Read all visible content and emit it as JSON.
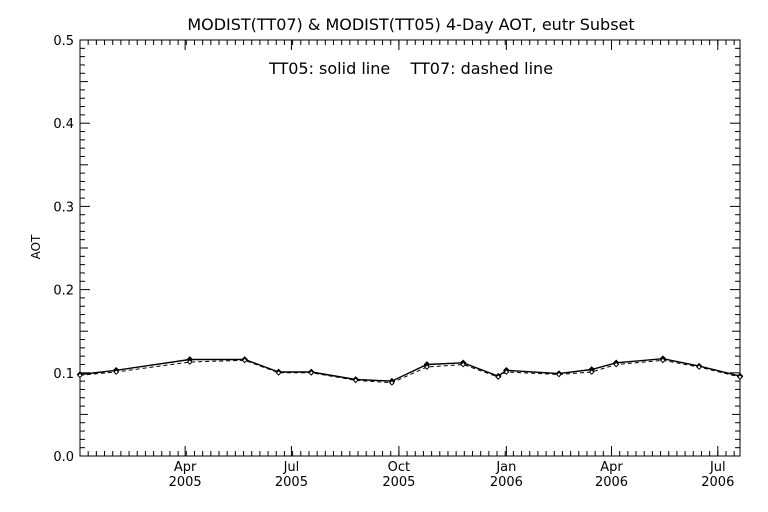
{
  "chart_data": {
    "type": "line",
    "title": "MODIST(TT07) & MODIST(TT05) 4-Day AOT, eutr Subset",
    "annotation": "TT05: solid line    TT07: dashed line",
    "ylabel": "AOT",
    "xlabel": "",
    "ylim": [
      0.0,
      0.5
    ],
    "xlim": [
      "2005-01-01",
      "2006-07-20"
    ],
    "y_ticks": [
      "0.0",
      "0.1",
      "0.2",
      "0.3",
      "0.4",
      "0.5"
    ],
    "x_ticks": [
      {
        "date": "2005-04-01",
        "month": "Apr",
        "year": "2005"
      },
      {
        "date": "2005-07-01",
        "month": "Jul",
        "year": "2005"
      },
      {
        "date": "2005-10-01",
        "month": "Oct",
        "year": "2005"
      },
      {
        "date": "2006-01-01",
        "month": "Jan",
        "year": "2006"
      },
      {
        "date": "2006-04-01",
        "month": "Apr",
        "year": "2006"
      },
      {
        "date": "2006-07-01",
        "month": "Jul",
        "year": "2006"
      }
    ],
    "grid": false,
    "series": [
      {
        "name": "TT05",
        "style": "solid",
        "points": [
          {
            "x": "2005-01-01",
            "y": 0.098
          },
          {
            "x": "2005-02-01",
            "y": 0.103
          },
          {
            "x": "2005-04-05",
            "y": 0.116
          },
          {
            "x": "2005-05-22",
            "y": 0.116
          },
          {
            "x": "2005-06-20",
            "y": 0.101
          },
          {
            "x": "2005-07-18",
            "y": 0.101
          },
          {
            "x": "2005-08-25",
            "y": 0.092
          },
          {
            "x": "2005-09-25",
            "y": 0.09
          },
          {
            "x": "2005-10-25",
            "y": 0.11
          },
          {
            "x": "2005-11-25",
            "y": 0.112
          },
          {
            "x": "2005-12-25",
            "y": 0.096
          },
          {
            "x": "2006-01-01",
            "y": 0.103
          },
          {
            "x": "2006-02-15",
            "y": 0.099
          },
          {
            "x": "2006-03-15",
            "y": 0.104
          },
          {
            "x": "2006-04-05",
            "y": 0.112
          },
          {
            "x": "2006-05-15",
            "y": 0.117
          },
          {
            "x": "2006-06-15",
            "y": 0.108
          },
          {
            "x": "2006-07-20",
            "y": 0.096
          }
        ]
      },
      {
        "name": "TT07",
        "style": "dashed",
        "points": [
          {
            "x": "2005-01-01",
            "y": 0.097
          },
          {
            "x": "2005-02-01",
            "y": 0.101
          },
          {
            "x": "2005-04-05",
            "y": 0.113
          },
          {
            "x": "2005-05-22",
            "y": 0.115
          },
          {
            "x": "2005-06-20",
            "y": 0.1
          },
          {
            "x": "2005-07-18",
            "y": 0.1
          },
          {
            "x": "2005-08-25",
            "y": 0.091
          },
          {
            "x": "2005-09-25",
            "y": 0.088
          },
          {
            "x": "2005-10-25",
            "y": 0.107
          },
          {
            "x": "2005-11-25",
            "y": 0.11
          },
          {
            "x": "2005-12-25",
            "y": 0.095
          },
          {
            "x": "2006-01-01",
            "y": 0.101
          },
          {
            "x": "2006-02-15",
            "y": 0.098
          },
          {
            "x": "2006-03-15",
            "y": 0.101
          },
          {
            "x": "2006-04-05",
            "y": 0.11
          },
          {
            "x": "2006-05-15",
            "y": 0.115
          },
          {
            "x": "2006-06-15",
            "y": 0.107
          },
          {
            "x": "2006-07-20",
            "y": 0.095
          }
        ]
      }
    ]
  }
}
